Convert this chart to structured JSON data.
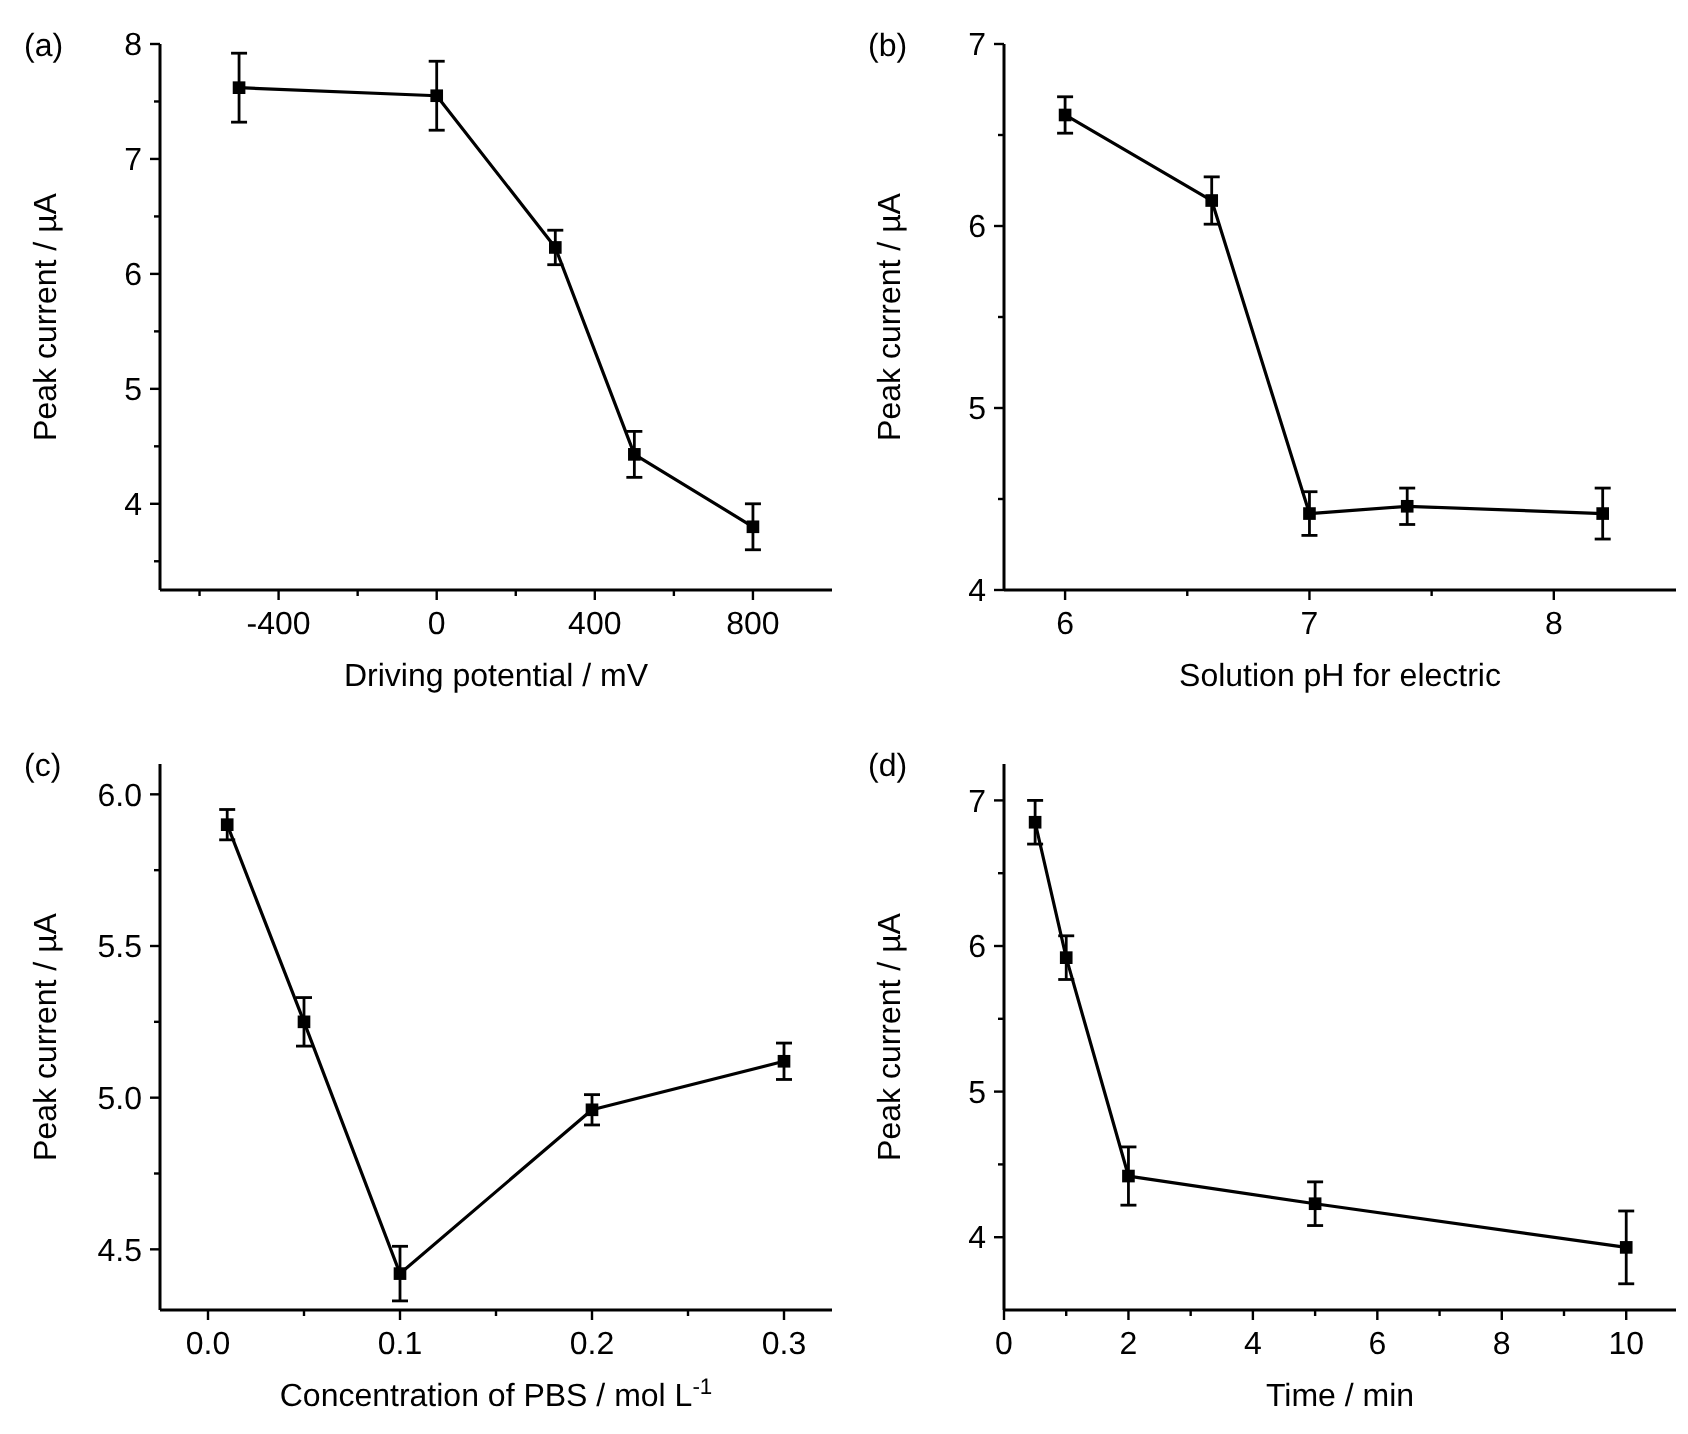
{
  "chart_data": [
    {
      "type": "line",
      "title": "(a)",
      "xlabel": "Driving potential / mV",
      "ylabel": "Peak current / µA",
      "marker": "square",
      "line_style": "solid",
      "x": [
        -500,
        0,
        300,
        500,
        800
      ],
      "series": [
        {
          "color": "#000000",
          "values": [
            7.62,
            7.55,
            6.23,
            4.43,
            3.8
          ],
          "errors": [
            0.3,
            0.3,
            0.15,
            0.2,
            0.2
          ]
        }
      ],
      "xlim": [
        -700,
        1000
      ],
      "ylim": [
        3.25,
        8
      ],
      "xticks": [
        {
          "value": -600,
          "label": null
        },
        -400,
        {
          "value": -200,
          "label": null
        },
        0,
        {
          "value": 200,
          "label": null
        },
        400,
        {
          "value": 600,
          "label": null
        },
        800
      ],
      "yticks": [
        {
          "value": 3.5,
          "label": null
        },
        4,
        {
          "value": 4.5,
          "label": null
        },
        5,
        {
          "value": 5.5,
          "label": null
        },
        6,
        {
          "value": 6.5,
          "label": null
        },
        7,
        {
          "value": 7.5,
          "label": null
        },
        8
      ]
    },
    {
      "type": "line",
      "title": "(b)",
      "xlabel": "Solution pH for electric",
      "ylabel": "Peak current / µA",
      "marker": "square",
      "line_style": "solid",
      "x": [
        6,
        6.6,
        7,
        7.4,
        8.2
      ],
      "series": [
        {
          "color": "#000000",
          "values": [
            6.61,
            6.14,
            4.42,
            4.46,
            4.42
          ],
          "errors": [
            0.1,
            0.13,
            0.12,
            0.1,
            0.14
          ]
        }
      ],
      "xlim": [
        5.75,
        8.5
      ],
      "ylim": [
        4,
        7
      ],
      "xticks": [
        6,
        {
          "value": 6.5,
          "label": null
        },
        7,
        {
          "value": 7.5,
          "label": null
        },
        8
      ],
      "yticks": [
        4,
        {
          "value": 4.5,
          "label": null
        },
        5,
        {
          "value": 5.5,
          "label": null
        },
        6,
        {
          "value": 6.5,
          "label": null
        },
        7
      ]
    },
    {
      "type": "line",
      "title": "(c)",
      "xlabel": "Concentration of PBS / mol L$^{-1}$",
      "ylabel": "Peak current / µA",
      "marker": "square",
      "line_style": "solid",
      "x": [
        0.01,
        0.05,
        0.1,
        0.2,
        0.3
      ],
      "series": [
        {
          "color": "#000000",
          "values": [
            5.9,
            5.25,
            4.42,
            4.96,
            5.12
          ],
          "errors": [
            0.05,
            0.08,
            0.09,
            0.05,
            0.06
          ]
        }
      ],
      "xlim": [
        -0.025,
        0.325
      ],
      "ylim": [
        4.3,
        6.1
      ],
      "xticks": [
        {
          "value": 0,
          "label": "0.0"
        },
        {
          "value": 0.05,
          "label": null
        },
        0.1,
        {
          "value": 0.15,
          "label": null
        },
        0.2,
        {
          "value": 0.25,
          "label": null
        },
        0.3
      ],
      "yticks": [
        4.5,
        {
          "value": 4.75,
          "label": null
        },
        {
          "value": 5,
          "label": "5.0"
        },
        {
          "value": 5.25,
          "label": null
        },
        5.5,
        {
          "value": 5.75,
          "label": null
        },
        {
          "value": 6,
          "label": "6.0"
        }
      ]
    },
    {
      "type": "line",
      "title": "(d)",
      "xlabel": "Time / min",
      "ylabel": "Peak current / µA",
      "marker": "square",
      "line_style": "solid",
      "x": [
        0.5,
        1,
        2,
        5,
        10
      ],
      "series": [
        {
          "color": "#000000",
          "values": [
            6.85,
            5.92,
            4.42,
            4.23,
            3.93
          ],
          "errors": [
            0.15,
            0.15,
            0.2,
            0.15,
            0.25
          ]
        }
      ],
      "xlim": [
        0,
        10.8
      ],
      "ylim": [
        3.5,
        7.25
      ],
      "xticks": [
        0,
        {
          "value": 1,
          "label": null
        },
        2,
        {
          "value": 3,
          "label": null
        },
        4,
        {
          "value": 5,
          "label": null
        },
        6,
        {
          "value": 7,
          "label": null
        },
        8,
        {
          "value": 9,
          "label": null
        },
        10
      ],
      "yticks": [
        4,
        {
          "value": 4.5,
          "label": null
        },
        5,
        {
          "value": 5.5,
          "label": null
        },
        6,
        {
          "value": 6.5,
          "label": null
        },
        7
      ]
    }
  ]
}
